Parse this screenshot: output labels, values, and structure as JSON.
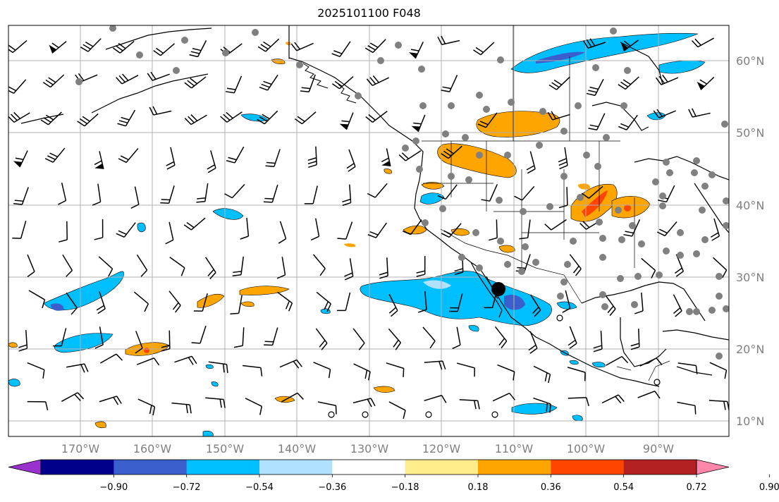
{
  "title": "2025101100 F048",
  "lon_labels": [
    "170°W",
    "160°W",
    "150°W",
    "140°W",
    "130°W",
    "120°W",
    "110°W",
    "100°W",
    "90°W"
  ],
  "lat_labels": [
    "10°N",
    "20°N",
    "30°N",
    "40°N",
    "50°N",
    "60°N"
  ],
  "colorbar": {
    "colors": [
      "#9932CC",
      "#00008B",
      "#3A5FCD",
      "#00BFFF",
      "#B0E2FF",
      "#FFFFFF",
      "#FFEC8B",
      "#FFA500",
      "#FF4500",
      "#B22222",
      "#FF88AA"
    ],
    "tick_labels": [
      "−0.90",
      "−0.72",
      "−0.54",
      "−0.36",
      "−0.18",
      "0.18",
      "0.36",
      "0.54",
      "0.72",
      "0.90"
    ]
  },
  "colors": {
    "grid": "#b0b0b0",
    "coast": "#000000",
    "station": "#808080",
    "barb": "#000000"
  }
}
